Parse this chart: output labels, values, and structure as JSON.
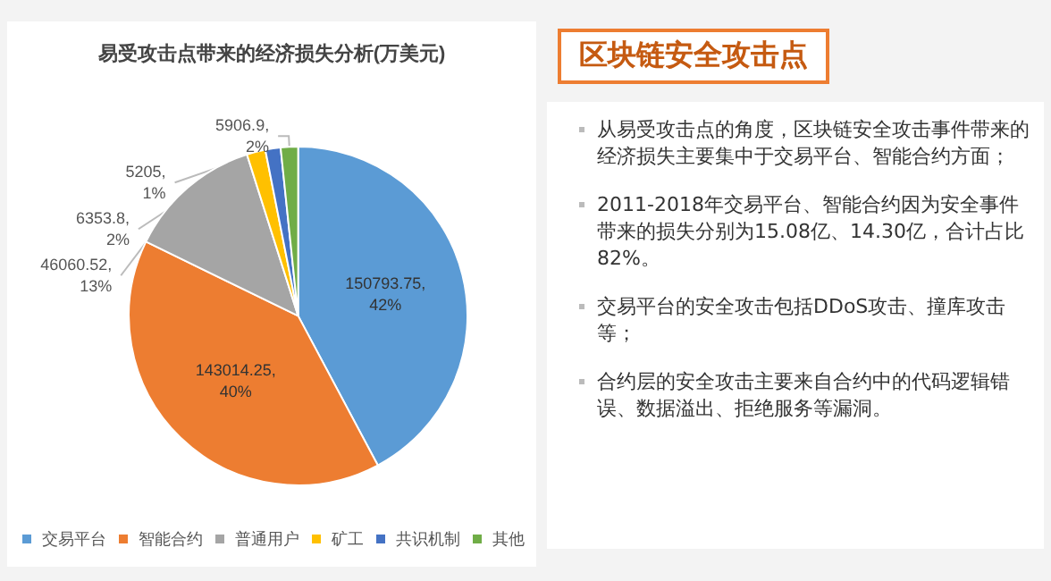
{
  "chart_data": [
    {
      "type": "pie",
      "title": "易受攻击点带来的经济损失分析(万美元)",
      "categories": [
        "交易平台",
        "智能合约",
        "普通用户",
        "矿工",
        "共识机制",
        "其他"
      ],
      "values": [
        150793.75,
        143014.25,
        46060.52,
        6353.8,
        5205,
        5906.9
      ],
      "colors": [
        "#5b9bd5",
        "#ed7d31",
        "#a5a5a5",
        "#ffc000",
        "#4472c4",
        "#70ad47"
      ],
      "value_labels": [
        "150793.75, 42%",
        "143014.25, 40%",
        "46060.52, 13%",
        "6353.8, 2%",
        "5205, 1%",
        "5906.9, 2%"
      ],
      "legend": "bottom"
    },
    {
      "type": "other",
      "title": "区块链安全攻击点",
      "annotations": [
        "从易受攻击点的角度，区块链安全攻击事件带来的经济损失主要集中于交易平台、智能合约方面；",
        "2011-2018年交易平台、智能合约因为安全事件带来的损失分别为15.08亿、14.30亿，合计占比82%。",
        "交易平台的安全攻击包括DDoS攻击、撞库攻击等；",
        "合约层的安全攻击主要来自合约中的代码逻辑错误、数据溢出、拒绝服务等漏洞。"
      ]
    }
  ]
}
